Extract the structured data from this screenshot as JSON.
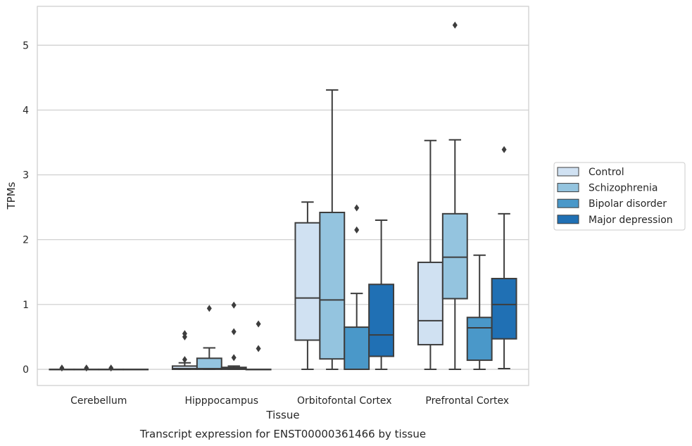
{
  "chart_data": {
    "type": "box",
    "caption": "Transcript expression for ENST00000361466 by tissue",
    "xlabel": "Tissue",
    "ylabel": "TPMs",
    "categories": [
      "Cerebellum",
      "Hipppocampus",
      "Orbitofontal Cortex",
      "Prefrontal Cortex"
    ],
    "yticks": [
      0,
      1,
      2,
      3,
      4,
      5
    ],
    "ylim": [
      -0.25,
      5.6
    ],
    "grid": "horizontal",
    "legend": {
      "position": "right",
      "entries": [
        "Control",
        "Schizophrenia",
        "Bipolar disorder",
        "Major depression"
      ]
    },
    "series": [
      {
        "name": "Control",
        "color": "#d0e1f2",
        "boxes": [
          {
            "category": "Cerebellum",
            "whisker_low": 0,
            "q1": 0,
            "median": 0,
            "q3": 0,
            "whisker_high": 0,
            "outliers": [
              0.02
            ]
          },
          {
            "category": "Hipppocampus",
            "whisker_low": 0,
            "q1": 0,
            "median": 0.01,
            "q3": 0.05,
            "whisker_high": 0.1,
            "outliers": [
              0.15,
              0.5,
              0.55
            ]
          },
          {
            "category": "Orbitofontal Cortex",
            "whisker_low": 0,
            "q1": 0.45,
            "median": 1.1,
            "q3": 2.26,
            "whisker_high": 2.58,
            "outliers": []
          },
          {
            "category": "Prefrontal Cortex",
            "whisker_low": 0,
            "q1": 0.38,
            "median": 0.75,
            "q3": 1.65,
            "whisker_high": 3.53,
            "outliers": []
          }
        ]
      },
      {
        "name": "Schizophrenia",
        "color": "#94c4df",
        "boxes": [
          {
            "category": "Cerebellum",
            "whisker_low": 0,
            "q1": 0,
            "median": 0,
            "q3": 0,
            "whisker_high": 0,
            "outliers": [
              0.02
            ]
          },
          {
            "category": "Hipppocampus",
            "whisker_low": 0,
            "q1": 0,
            "median": 0.01,
            "q3": 0.17,
            "whisker_high": 0.33,
            "outliers": [
              0.94
            ]
          },
          {
            "category": "Orbitofontal Cortex",
            "whisker_low": 0,
            "q1": 0.16,
            "median": 1.07,
            "q3": 2.42,
            "whisker_high": 4.31,
            "outliers": []
          },
          {
            "category": "Prefrontal Cortex",
            "whisker_low": 0,
            "q1": 1.09,
            "median": 1.73,
            "q3": 2.4,
            "whisker_high": 3.54,
            "outliers": [
              5.31
            ]
          }
        ]
      },
      {
        "name": "Bipolar disorder",
        "color": "#4a98c9",
        "boxes": [
          {
            "category": "Cerebellum",
            "whisker_low": 0,
            "q1": 0,
            "median": 0,
            "q3": 0,
            "whisker_high": 0,
            "outliers": [
              0.02
            ]
          },
          {
            "category": "Hipppocampus",
            "whisker_low": 0,
            "q1": 0,
            "median": 0.01,
            "q3": 0.03,
            "whisker_high": 0.05,
            "outliers": [
              0.18,
              0.58,
              0.99
            ]
          },
          {
            "category": "Orbitofontal Cortex",
            "whisker_low": 0,
            "q1": 0,
            "median": 0,
            "q3": 0.65,
            "whisker_high": 1.17,
            "outliers": [
              2.15,
              2.49
            ]
          },
          {
            "category": "Prefrontal Cortex",
            "whisker_low": 0,
            "q1": 0.14,
            "median": 0.64,
            "q3": 0.8,
            "whisker_high": 1.76,
            "outliers": []
          }
        ]
      },
      {
        "name": "Major depression",
        "color": "#2070b4",
        "boxes": [
          {
            "category": "Cerebellum",
            "whisker_low": 0,
            "q1": 0,
            "median": 0,
            "q3": 0,
            "whisker_high": 0,
            "outliers": []
          },
          {
            "category": "Hipppocampus",
            "whisker_low": 0,
            "q1": 0,
            "median": 0,
            "q3": 0,
            "whisker_high": 0,
            "outliers": [
              0.32,
              0.7
            ]
          },
          {
            "category": "Orbitofontal Cortex",
            "whisker_low": 0,
            "q1": 0.2,
            "median": 0.53,
            "q3": 1.31,
            "whisker_high": 2.3,
            "outliers": []
          },
          {
            "category": "Prefrontal Cortex",
            "whisker_low": 0.01,
            "q1": 0.47,
            "median": 1.0,
            "q3": 1.4,
            "whisker_high": 2.4,
            "outliers": [
              3.39
            ]
          }
        ]
      }
    ]
  }
}
